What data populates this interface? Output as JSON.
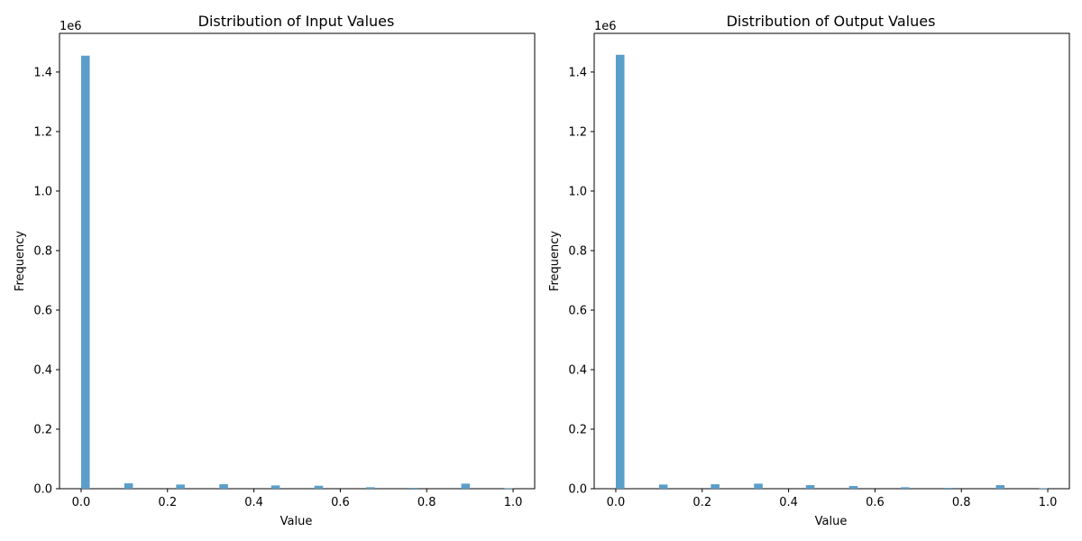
{
  "chart_data": [
    {
      "type": "bar",
      "title": "Distribution of Input Values",
      "xlabel": "Value",
      "ylabel": "Frequency",
      "y_offset_label": "1e6",
      "xlim": [
        -0.05,
        1.05
      ],
      "ylim": [
        0,
        1.53
      ],
      "bar_width": 0.02,
      "bar_color": "#5b9ec9",
      "x_ticks": [
        0.0,
        0.2,
        0.4,
        0.6,
        0.8,
        1.0
      ],
      "x_tick_labels": [
        "0.0",
        "0.2",
        "0.4",
        "0.6",
        "0.8",
        "1.0"
      ],
      "y_ticks": [
        0.0,
        0.2,
        0.4,
        0.6,
        0.8,
        1.0,
        1.2,
        1.4
      ],
      "y_tick_labels": [
        "0.0",
        "0.2",
        "0.4",
        "0.6",
        "0.8",
        "1.0",
        "1.2",
        "1.4"
      ],
      "bins": [
        {
          "x": 0.01,
          "value": 1.455
        },
        {
          "x": 0.11,
          "value": 0.018
        },
        {
          "x": 0.23,
          "value": 0.014
        },
        {
          "x": 0.33,
          "value": 0.015
        },
        {
          "x": 0.45,
          "value": 0.011
        },
        {
          "x": 0.55,
          "value": 0.01
        },
        {
          "x": 0.67,
          "value": 0.005
        },
        {
          "x": 0.77,
          "value": 0.003
        },
        {
          "x": 0.89,
          "value": 0.017
        },
        {
          "x": 0.99,
          "value": 0.002
        }
      ],
      "grid": false
    },
    {
      "type": "bar",
      "title": "Distribution of Output Values",
      "xlabel": "Value",
      "ylabel": "Frequency",
      "y_offset_label": "1e6",
      "xlim": [
        -0.05,
        1.05
      ],
      "ylim": [
        0,
        1.53
      ],
      "bar_width": 0.02,
      "bar_color": "#5b9ec9",
      "x_ticks": [
        0.0,
        0.2,
        0.4,
        0.6,
        0.8,
        1.0
      ],
      "x_tick_labels": [
        "0.0",
        "0.2",
        "0.4",
        "0.6",
        "0.8",
        "1.0"
      ],
      "y_ticks": [
        0.0,
        0.2,
        0.4,
        0.6,
        0.8,
        1.0,
        1.2,
        1.4
      ],
      "y_tick_labels": [
        "0.0",
        "0.2",
        "0.4",
        "0.6",
        "0.8",
        "1.0",
        "1.2",
        "1.4"
      ],
      "bins": [
        {
          "x": 0.01,
          "value": 1.458
        },
        {
          "x": 0.11,
          "value": 0.014
        },
        {
          "x": 0.23,
          "value": 0.015
        },
        {
          "x": 0.33,
          "value": 0.017
        },
        {
          "x": 0.45,
          "value": 0.012
        },
        {
          "x": 0.55,
          "value": 0.009
        },
        {
          "x": 0.67,
          "value": 0.005
        },
        {
          "x": 0.77,
          "value": 0.003
        },
        {
          "x": 0.89,
          "value": 0.012
        },
        {
          "x": 0.99,
          "value": 0.002
        }
      ],
      "grid": false
    }
  ]
}
